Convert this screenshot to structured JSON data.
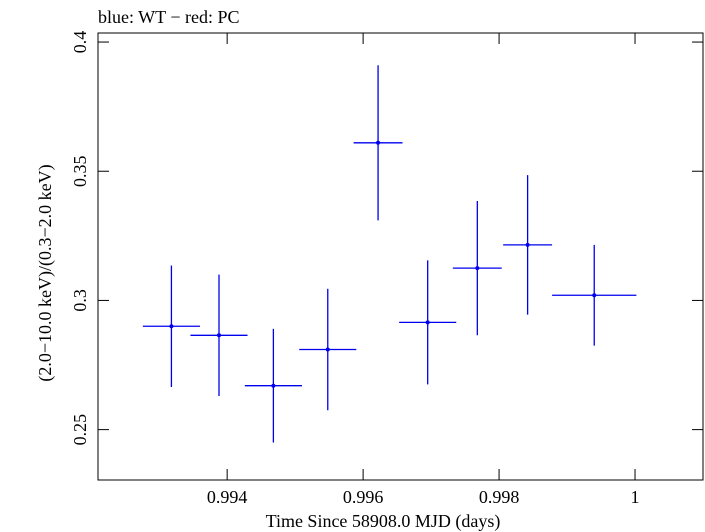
{
  "chart_data": {
    "type": "scatter",
    "title": "blue: WT − red: PC",
    "xlabel": "Time Since 58908.0 MJD (days)",
    "ylabel": "(2.0−10.0 keV)/(0.3−2.0 keV)",
    "xlim": [
      0.9921,
      1.001
    ],
    "ylim": [
      0.2305,
      0.4035
    ],
    "xticks": [
      0.994,
      0.996,
      0.998,
      1.0
    ],
    "xtick_labels": [
      "0.994",
      "0.996",
      "0.998",
      "1"
    ],
    "yticks": [
      0.25,
      0.3,
      0.35,
      0.4
    ],
    "ytick_labels": [
      "0.25",
      "0.3",
      "0.35",
      "0.4"
    ],
    "grid": false,
    "series": [
      {
        "color": "#0000ee",
        "points": [
          {
            "x": 0.99318,
            "xerr": 0.00042,
            "y": 0.29,
            "yerr_lo": 0.0235,
            "yerr_hi": 0.0235
          },
          {
            "x": 0.99388,
            "xerr": 0.00042,
            "y": 0.2865,
            "yerr_lo": 0.0235,
            "yerr_hi": 0.0235
          },
          {
            "x": 0.99468,
            "xerr": 0.00042,
            "y": 0.267,
            "yerr_lo": 0.022,
            "yerr_hi": 0.022
          },
          {
            "x": 0.99548,
            "xerr": 0.00042,
            "y": 0.281,
            "yerr_lo": 0.0235,
            "yerr_hi": 0.0235
          },
          {
            "x": 0.99622,
            "xerr": 0.00036,
            "y": 0.361,
            "yerr_lo": 0.03,
            "yerr_hi": 0.03
          },
          {
            "x": 0.99695,
            "xerr": 0.00042,
            "y": 0.2915,
            "yerr_lo": 0.024,
            "yerr_hi": 0.024
          },
          {
            "x": 0.99768,
            "xerr": 0.00036,
            "y": 0.3125,
            "yerr_lo": 0.026,
            "yerr_hi": 0.026
          },
          {
            "x": 0.99842,
            "xerr": 0.00036,
            "y": 0.3215,
            "yerr_lo": 0.027,
            "yerr_hi": 0.027
          },
          {
            "x": 0.9994,
            "xerr": 0.00062,
            "y": 0.302,
            "yerr_lo": 0.0195,
            "yerr_hi": 0.0195
          }
        ]
      }
    ]
  }
}
